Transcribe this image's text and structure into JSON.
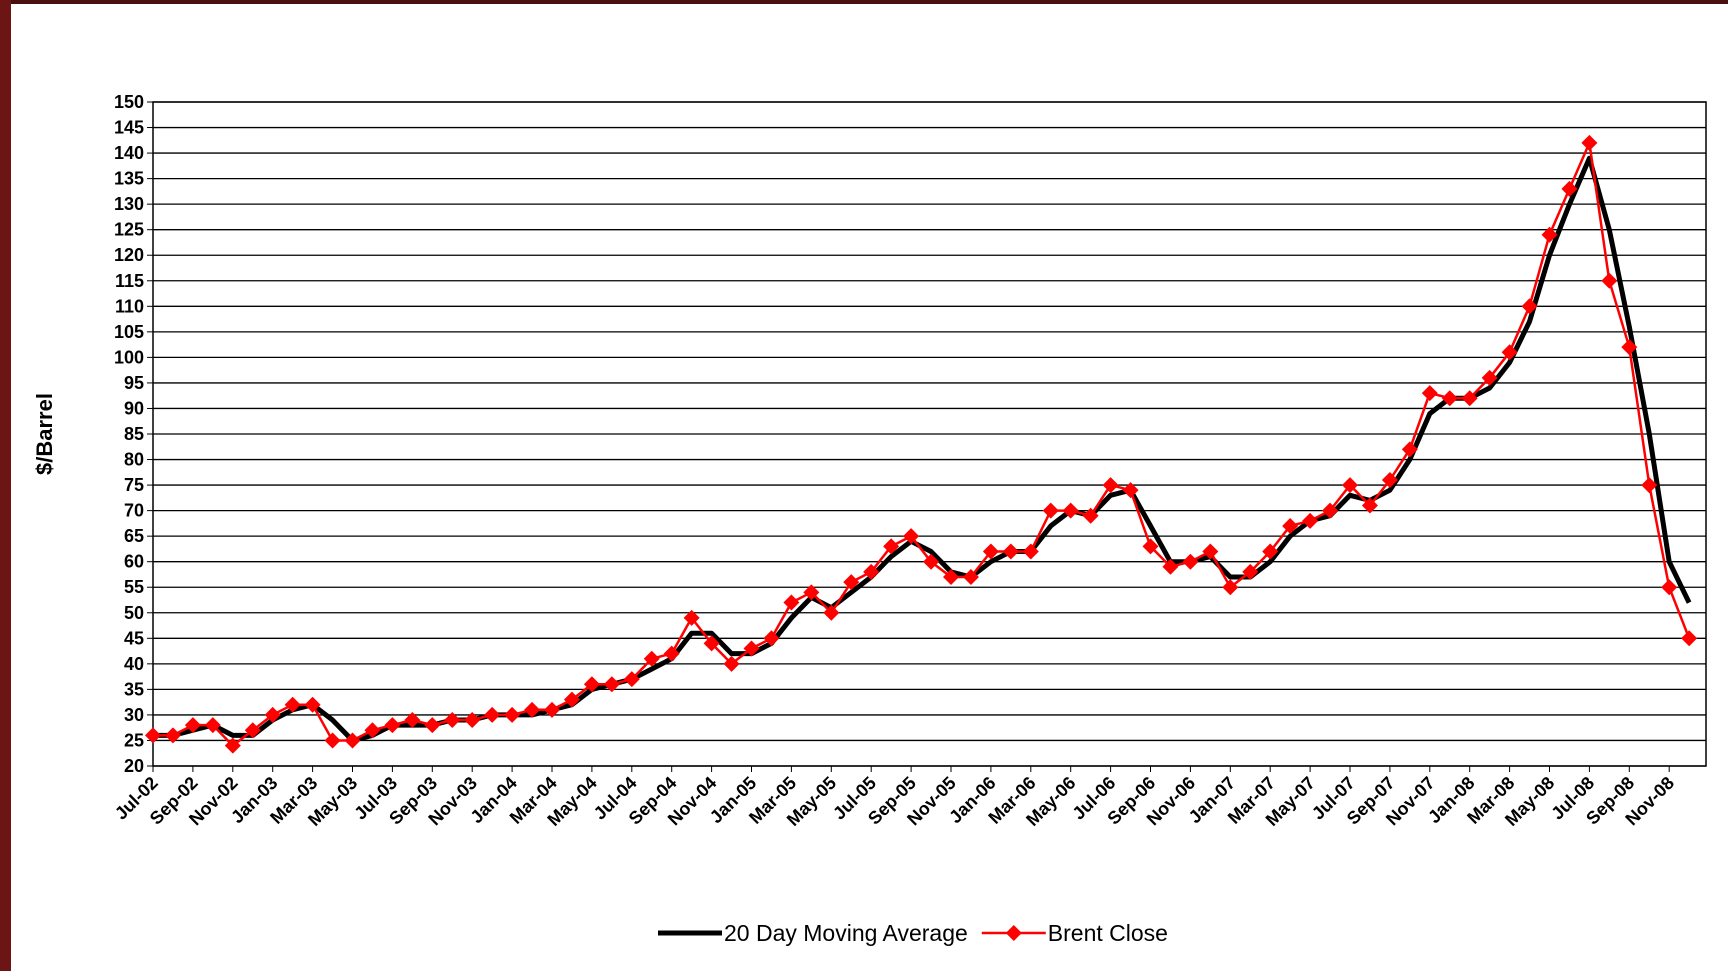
{
  "chart_data": {
    "type": "line",
    "y_axis_label": "$/Barrel",
    "categories": [
      "Jul-02",
      null,
      "Sep-02",
      null,
      "Nov-02",
      null,
      "Jan-03",
      null,
      "Mar-03",
      null,
      "May-03",
      null,
      "Jul-03",
      null,
      "Sep-03",
      null,
      "Nov-03",
      null,
      "Jan-04",
      null,
      "Mar-04",
      null,
      "May-04",
      null,
      "Jul-04",
      null,
      "Sep-04",
      null,
      "Nov-04",
      null,
      "Jan-05",
      null,
      "Mar-05",
      null,
      "May-05",
      null,
      "Jul-05",
      null,
      "Sep-05",
      null,
      "Nov-05",
      null,
      "Jan-06",
      null,
      "Mar-06",
      null,
      "May-06",
      null,
      "Jul-06",
      null,
      "Sep-06",
      null,
      "Nov-06",
      null,
      "Jan-07",
      null,
      "Mar-07",
      null,
      "May-07",
      null,
      "Jul-07",
      null,
      "Sep-07",
      null,
      "Nov-07",
      null,
      "Jan-08",
      null,
      "Mar-08",
      null,
      "May-08",
      null,
      "Jul-08",
      null,
      "Sep-08",
      null,
      "Nov-08",
      null
    ],
    "series": [
      {
        "name": "20 Day Moving Average",
        "color": "#000000",
        "marker": "none",
        "values": [
          26,
          26,
          27,
          28,
          26,
          26,
          29,
          31,
          32,
          29,
          25,
          26,
          28,
          28,
          28,
          29,
          29,
          30,
          30,
          30,
          31,
          32,
          35,
          36,
          37,
          39,
          41,
          46,
          46,
          42,
          42,
          44,
          49,
          53,
          51,
          54,
          57,
          61,
          64,
          62,
          58,
          57,
          60,
          62,
          62,
          67,
          70,
          69,
          73,
          74,
          67,
          60,
          60,
          61,
          57,
          57,
          60,
          65,
          68,
          69,
          73,
          72,
          74,
          80,
          89,
          92,
          92,
          94,
          99,
          107,
          120,
          130,
          139,
          125,
          106,
          85,
          60,
          52
        ]
      },
      {
        "name": "Brent Close",
        "color": "#ff0000",
        "marker": "diamond",
        "values": [
          26,
          26,
          28,
          28,
          24,
          27,
          30,
          32,
          32,
          25,
          25,
          27,
          28,
          29,
          28,
          29,
          29,
          30,
          30,
          31,
          31,
          33,
          36,
          36,
          37,
          41,
          42,
          49,
          44,
          40,
          43,
          45,
          52,
          54,
          50,
          56,
          58,
          63,
          65,
          60,
          57,
          57,
          62,
          62,
          62,
          70,
          70,
          69,
          75,
          74,
          63,
          59,
          60,
          62,
          55,
          58,
          62,
          67,
          68,
          70,
          75,
          71,
          76,
          82,
          93,
          92,
          92,
          96,
          101,
          110,
          124,
          133,
          142,
          115,
          102,
          75,
          55,
          45
        ]
      }
    ],
    "ylim": [
      20,
      150
    ],
    "yticks": [
      20,
      25,
      30,
      35,
      40,
      45,
      50,
      55,
      60,
      65,
      70,
      75,
      80,
      85,
      90,
      95,
      100,
      105,
      110,
      115,
      120,
      125,
      130,
      135,
      140,
      145,
      150
    ],
    "grid": true,
    "legend": "bottom"
  }
}
